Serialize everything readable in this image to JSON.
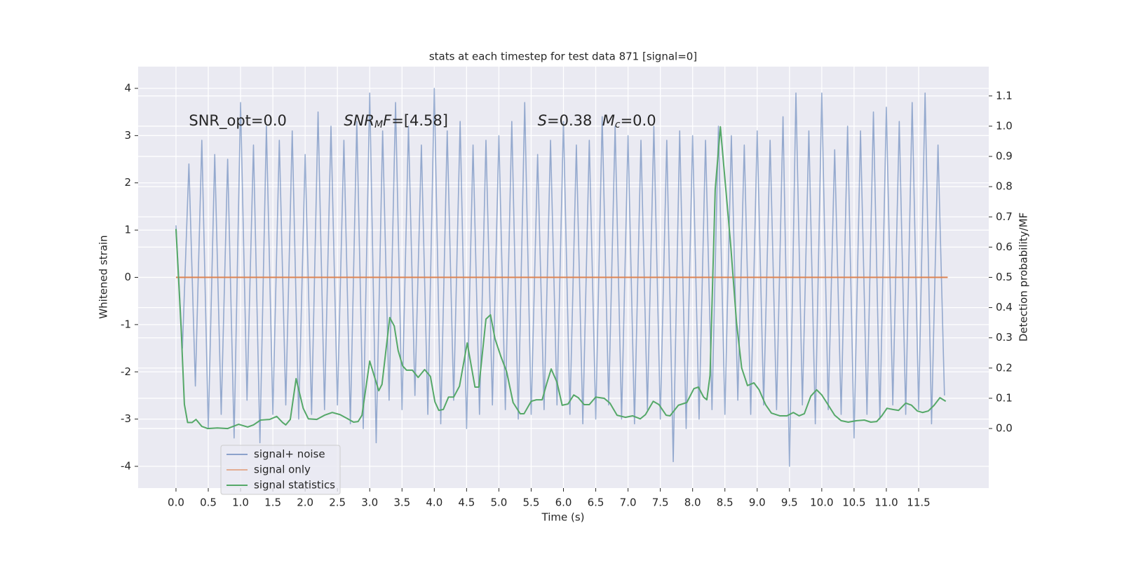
{
  "chart_data": {
    "type": "line",
    "title": "stats at each timestep for test data 871 [signal=0]",
    "x_label": "Time (s)",
    "y_label": "Whitened strain",
    "y2_label": "Detection probability/MF",
    "xlim": [
      -0.586,
      12.586
    ],
    "ylim": [
      -4.46,
      4.46
    ],
    "y2lim": [
      -0.197,
      1.197
    ],
    "xticks": [
      {
        "value": 0,
        "label": "0.0"
      },
      0.5,
      {
        "value": 1,
        "label": "1.0"
      },
      1.5,
      {
        "value": 2,
        "label": "2.0"
      },
      2.5,
      {
        "value": 3,
        "label": "3.0"
      },
      3.5,
      {
        "value": 4,
        "label": "4.0"
      },
      4.5,
      {
        "value": 5,
        "label": "5.0"
      },
      5.5,
      {
        "value": 6,
        "label": "6.0"
      },
      6.5,
      {
        "value": 7,
        "label": "7.0"
      },
      7.5,
      {
        "value": 8,
        "label": "8.0"
      },
      8.5,
      {
        "value": 9,
        "label": "9.0"
      },
      9.5,
      {
        "value": 10,
        "label": "10.0"
      },
      10.5,
      {
        "value": 11,
        "label": "11.0"
      },
      11.5
    ],
    "yticks": [
      -4,
      -3,
      -2,
      -1,
      0,
      1,
      2,
      3,
      4
    ],
    "y2ticks": [
      {
        "value": 0,
        "label": "0.0"
      },
      0.1,
      0.2,
      0.3,
      0.4,
      0.5,
      0.6,
      0.7,
      0.8,
      0.9,
      {
        "value": 1,
        "label": "1.0"
      },
      1.1
    ],
    "grid": true,
    "legend": "lower left",
    "annotations": [
      {
        "x": 0.2,
        "y": 3.3,
        "parts": [
          {
            "text": "SNR_opt=0.0"
          }
        ]
      },
      {
        "x": 2.6,
        "y": 3.3,
        "parts": [
          {
            "text": "SNR",
            "italic": true
          },
          {
            "text": "M",
            "italic": true,
            "sub": true
          },
          {
            "text": "F",
            "italic": true
          },
          {
            "text": "=[4.58]"
          }
        ]
      },
      {
        "x": 5.6,
        "y": 3.3,
        "parts": [
          {
            "text": "S",
            "italic": true
          },
          {
            "text": "=0.38"
          }
        ]
      },
      {
        "x": 6.6,
        "y": 3.3,
        "parts": [
          {
            "text": "M",
            "italic": true
          },
          {
            "text": "c",
            "italic": true,
            "sub": true
          },
          {
            "text": "=0.0"
          }
        ]
      }
    ],
    "series": [
      {
        "name": "signal+ noise",
        "color": "#4c72b0",
        "x": [
          0,
          0.1,
          0.2,
          0.3,
          0.4,
          0.5,
          0.6,
          0.7,
          0.8,
          0.9,
          1,
          1.1,
          1.2,
          1.3,
          1.4,
          1.5,
          1.6,
          1.7,
          1.8,
          1.9,
          2,
          2.1,
          2.2,
          2.3,
          2.4,
          2.5,
          2.6,
          2.7,
          2.8,
          2.9,
          3,
          3.1,
          3.2,
          3.3,
          3.4,
          3.5,
          3.6,
          3.7,
          3.8,
          3.9,
          4,
          4.1,
          4.2,
          4.3,
          4.4,
          4.5,
          4.6,
          4.7,
          4.8,
          4.9,
          5,
          5.1,
          5.2,
          5.3,
          5.4,
          5.5,
          5.6,
          5.7,
          5.8,
          5.9,
          6,
          6.1,
          6.2,
          6.3,
          6.4,
          6.5,
          6.6,
          6.7,
          6.8,
          6.9,
          7,
          7.1,
          7.2,
          7.3,
          7.4,
          7.5,
          7.6,
          7.7,
          7.8,
          7.9,
          8,
          8.1,
          8.2,
          8.3,
          8.4,
          8.5,
          8.6,
          8.7,
          8.8,
          8.9,
          9,
          9.1,
          9.2,
          9.3,
          9.4,
          9.5,
          9.6,
          9.7,
          9.8,
          9.9,
          10,
          10.1,
          10.2,
          10.3,
          10.4,
          10.5,
          10.6,
          10.7,
          10.8,
          10.9,
          11,
          11.1,
          11.2,
          11.3,
          11.4,
          11.5,
          11.6,
          11.7,
          11.8,
          11.9
        ],
        "values": [
          1.1,
          -1.5,
          2.4,
          -2.3,
          2.9,
          -3.2,
          2.6,
          -2.9,
          2.5,
          -3.4,
          3.7,
          -2.6,
          2.8,
          -3.5,
          3.2,
          -2.9,
          2.9,
          -2.7,
          3.1,
          -3.0,
          2.6,
          -2.9,
          3.5,
          -2.8,
          3.2,
          -2.7,
          2.9,
          -3.1,
          3.3,
          -3.2,
          3.9,
          -3.5,
          3.1,
          -2.6,
          3.7,
          -2.8,
          3.2,
          -2.5,
          2.8,
          -2.9,
          4.0,
          -3.1,
          3.1,
          -2.6,
          3.3,
          -3.2,
          2.8,
          -2.9,
          2.9,
          -2.7,
          3.0,
          -2.8,
          3.3,
          -3.0,
          3.7,
          -2.9,
          2.6,
          -2.8,
          2.9,
          -2.7,
          3.3,
          -2.9,
          2.8,
          -3.1,
          2.9,
          -3.0,
          3.4,
          -2.7,
          3.2,
          -3.0,
          3.0,
          -3.1,
          2.9,
          -2.8,
          3.2,
          -3.0,
          2.9,
          -3.9,
          3.1,
          -3.2,
          3.0,
          -3.0,
          2.9,
          -2.8,
          3.2,
          -2.9,
          3.0,
          -2.6,
          2.8,
          -2.9,
          3.1,
          -2.7,
          2.9,
          -2.8,
          3.4,
          -4.0,
          3.9,
          -2.7,
          3.1,
          -3.1,
          3.9,
          -2.8,
          2.7,
          -2.9,
          3.2,
          -3.4,
          3.1,
          -2.9,
          3.5,
          -3.0,
          3.6,
          -2.7,
          3.3,
          -2.9,
          3.7,
          -2.8,
          3.9,
          -3.1,
          2.8,
          -2.5
        ]
      },
      {
        "name": "signal only",
        "color": "#dd8452",
        "x": [
          0,
          11.95
        ],
        "values": [
          0,
          0
        ]
      },
      {
        "name": "signal statistics",
        "color": "#55a868",
        "axis": "y2",
        "x": [
          0,
          0.08,
          0.13,
          0.18,
          0.25,
          0.31,
          0.4,
          0.49,
          0.64,
          0.8,
          0.97,
          1.11,
          1.2,
          1.31,
          1.45,
          1.56,
          1.65,
          1.7,
          1.77,
          1.86,
          1.97,
          2.05,
          2.18,
          2.3,
          2.42,
          2.54,
          2.66,
          2.75,
          2.82,
          2.88,
          3.0,
          3.14,
          3.19,
          3.31,
          3.38,
          3.44,
          3.51,
          3.57,
          3.66,
          3.75,
          3.85,
          3.94,
          4.01,
          4.07,
          4.14,
          4.22,
          4.3,
          4.39,
          4.51,
          4.63,
          4.69,
          4.8,
          4.87,
          4.94,
          5.03,
          5.12,
          5.22,
          5.33,
          5.39,
          5.5,
          5.58,
          5.67,
          5.74,
          5.81,
          5.9,
          5.98,
          6.07,
          6.16,
          6.23,
          6.32,
          6.4,
          6.5,
          6.63,
          6.72,
          6.83,
          6.96,
          7.07,
          7.19,
          7.27,
          7.39,
          7.48,
          7.59,
          7.65,
          7.78,
          7.91,
          8.02,
          8.09,
          8.17,
          8.22,
          8.27,
          8.35,
          8.43,
          8.5,
          8.59,
          8.68,
          8.76,
          8.85,
          8.95,
          9.03,
          9.13,
          9.22,
          9.35,
          9.46,
          9.56,
          9.65,
          9.73,
          9.83,
          9.92,
          10.0,
          10.09,
          10.2,
          10.3,
          10.41,
          10.54,
          10.66,
          10.76,
          10.85,
          10.93,
          11.01,
          11.1,
          11.19,
          11.3,
          11.39,
          11.48,
          11.56,
          11.65,
          11.74,
          11.83,
          11.92
        ],
        "values": [
          0.66,
          0.33,
          0.08,
          0.02,
          0.02,
          0.03,
          0.007,
          0.0,
          0.002,
          0.0,
          0.014,
          0.005,
          0.012,
          0.028,
          0.03,
          0.04,
          0.02,
          0.012,
          0.03,
          0.165,
          0.067,
          0.032,
          0.03,
          0.044,
          0.053,
          0.046,
          0.032,
          0.021,
          0.023,
          0.044,
          0.223,
          0.125,
          0.146,
          0.367,
          0.339,
          0.258,
          0.207,
          0.193,
          0.193,
          0.169,
          0.195,
          0.172,
          0.088,
          0.06,
          0.063,
          0.104,
          0.104,
          0.14,
          0.283,
          0.137,
          0.137,
          0.362,
          0.376,
          0.297,
          0.239,
          0.188,
          0.086,
          0.049,
          0.049,
          0.09,
          0.095,
          0.095,
          0.148,
          0.197,
          0.153,
          0.077,
          0.081,
          0.111,
          0.102,
          0.079,
          0.079,
          0.104,
          0.1,
          0.084,
          0.044,
          0.037,
          0.042,
          0.032,
          0.046,
          0.09,
          0.079,
          0.044,
          0.042,
          0.077,
          0.086,
          0.132,
          0.137,
          0.104,
          0.095,
          0.176,
          0.791,
          0.998,
          0.826,
          0.606,
          0.35,
          0.2,
          0.142,
          0.151,
          0.128,
          0.079,
          0.051,
          0.042,
          0.042,
          0.053,
          0.042,
          0.049,
          0.107,
          0.128,
          0.111,
          0.081,
          0.044,
          0.026,
          0.021,
          0.026,
          0.028,
          0.021,
          0.023,
          0.042,
          0.067,
          0.063,
          0.06,
          0.084,
          0.077,
          0.058,
          0.053,
          0.058,
          0.077,
          0.102,
          0.09
        ]
      }
    ]
  }
}
